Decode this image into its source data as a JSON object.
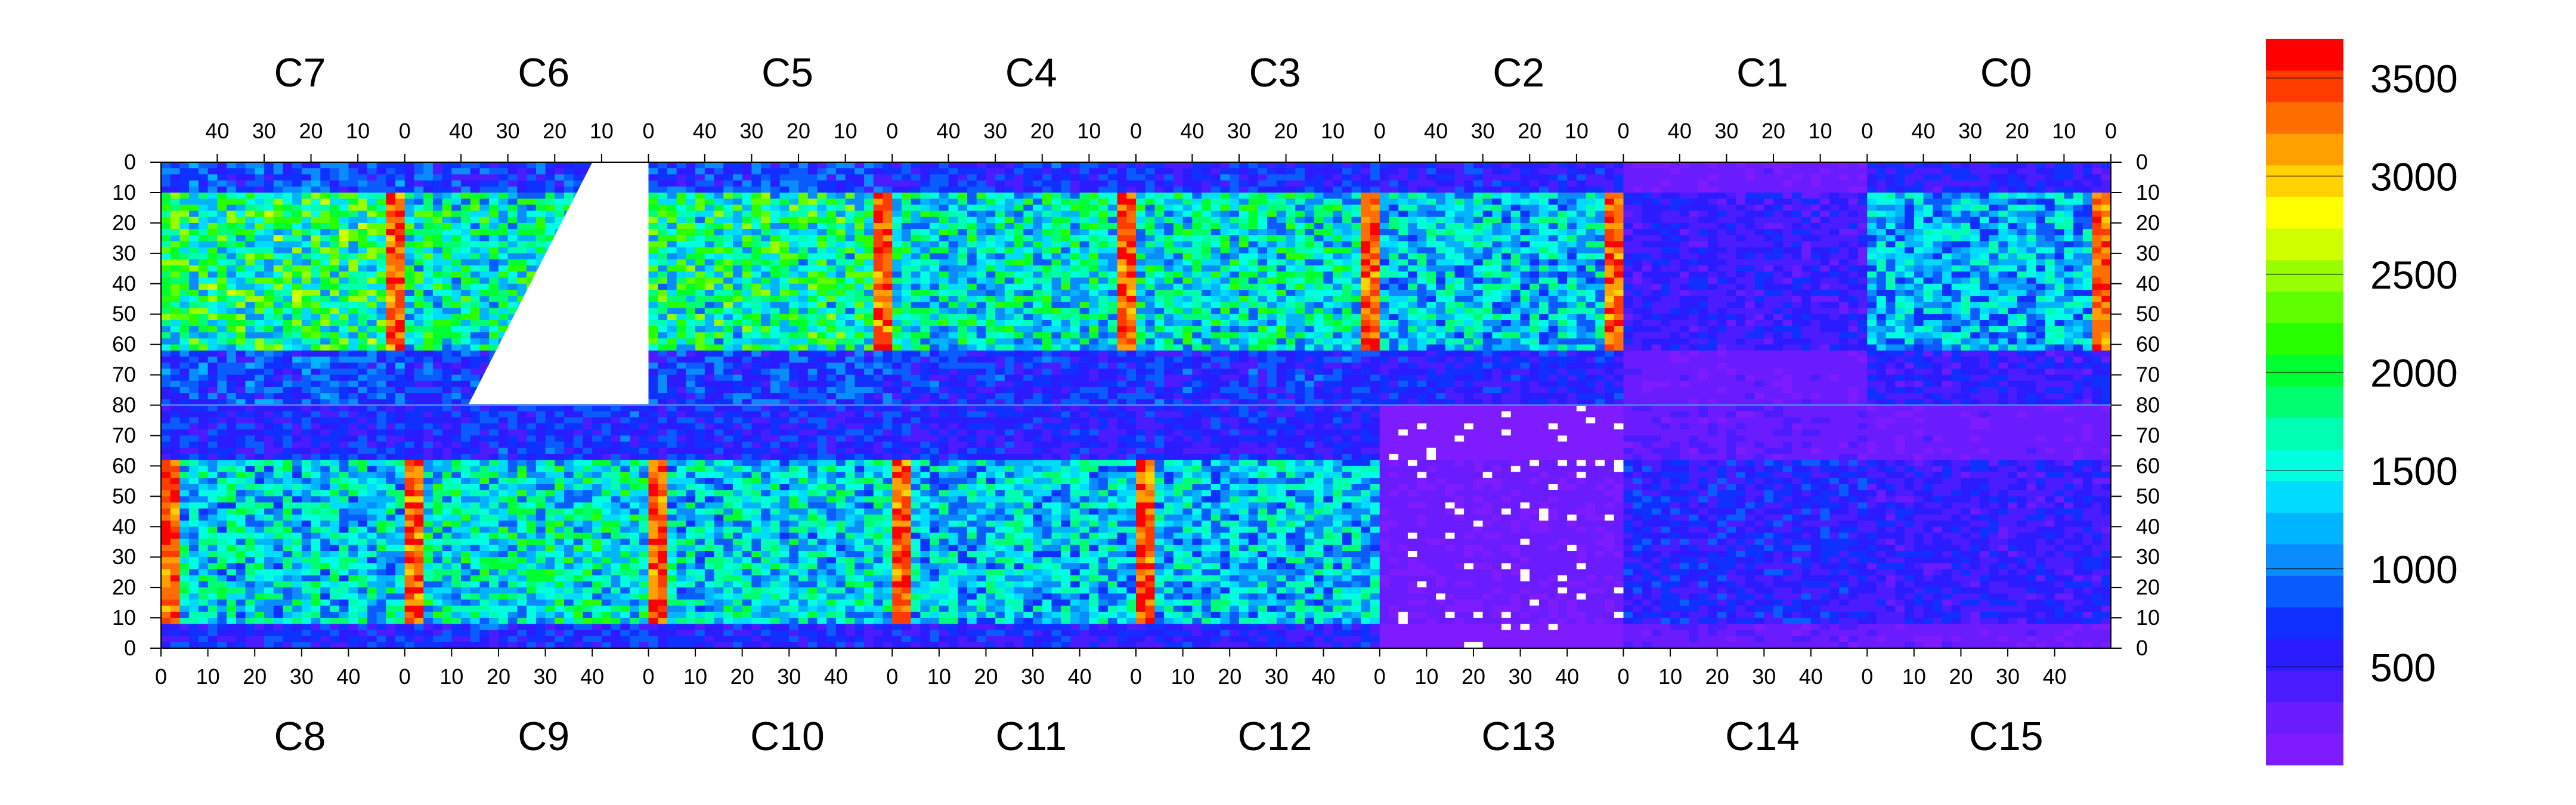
{
  "chart_data": {
    "type": "heatmap",
    "title": "",
    "xlabel": "",
    "ylabel": "",
    "chip_count": 16,
    "columns_per_chip": 52,
    "rows_per_half": 80,
    "top_chips": {
      "labels": [
        "C7",
        "C6",
        "C5",
        "C4",
        "C3",
        "C2",
        "C1",
        "C0"
      ],
      "tick_labels": [
        "40",
        "30",
        "20",
        "10",
        "0"
      ]
    },
    "bottom_chips": {
      "labels": [
        "C8",
        "C9",
        "C10",
        "C11",
        "C12",
        "C13",
        "C14",
        "C15"
      ],
      "tick_labels": [
        "0",
        "10",
        "20",
        "30",
        "40"
      ]
    },
    "y_ticks_top_half": [
      "0",
      "10",
      "20",
      "30",
      "40",
      "50",
      "60",
      "70",
      "80"
    ],
    "y_ticks_bottom_half": [
      "70",
      "60",
      "50",
      "40",
      "30",
      "20",
      "10",
      "0"
    ],
    "colorbar": {
      "min": 0,
      "max": 3700,
      "tick_labels": [
        "500",
        "1000",
        "1500",
        "2000",
        "2500",
        "3000",
        "3500"
      ],
      "tick_values": [
        500,
        1000,
        1500,
        2000,
        2500,
        3000,
        3500
      ],
      "colors": [
        "#7f1cff",
        "#6a1cff",
        "#4a1cff",
        "#2a1cff",
        "#1030ff",
        "#0a5cff",
        "#0a8cff",
        "#00b4ff",
        "#00dcff",
        "#00ffe0",
        "#00ffb0",
        "#00ff70",
        "#00ff30",
        "#28ff00",
        "#60ff00",
        "#98ff00",
        "#d0ff00",
        "#ffff00",
        "#ffd200",
        "#ffa000",
        "#ff6e00",
        "#ff3c00",
        "#ff0000"
      ]
    },
    "chip_features": [
      {
        "chip": "C7",
        "bright_band": true,
        "mean_level": 1800
      },
      {
        "chip": "C6",
        "bright_band": true,
        "mean_level": 1600,
        "empty_region": "upper-right triangle"
      },
      {
        "chip": "C5",
        "bright_band": true,
        "mean_level": 1700
      },
      {
        "chip": "C4",
        "bright_band": true,
        "mean_level": 1500
      },
      {
        "chip": "C3",
        "bright_band": true,
        "mean_level": 1500
      },
      {
        "chip": "C2",
        "bright_band": true,
        "mean_level": 1300
      },
      {
        "chip": "C1",
        "bright_band": false,
        "mean_level": 500
      },
      {
        "chip": "C0",
        "bright_band": true,
        "mean_level": 1200
      },
      {
        "chip": "C8",
        "bright_band": true,
        "mean_level": 1400
      },
      {
        "chip": "C9",
        "bright_band": true,
        "mean_level": 1500
      },
      {
        "chip": "C10",
        "bright_band": true,
        "mean_level": 1400
      },
      {
        "chip": "C11",
        "bright_band": true,
        "mean_level": 1300
      },
      {
        "chip": "C12",
        "bright_band": true,
        "mean_level": 1300
      },
      {
        "chip": "C13",
        "bright_band": false,
        "mean_level": 200,
        "empty_region": "scattered dead pixels"
      },
      {
        "chip": "C14",
        "bright_band": false,
        "mean_level": 600
      },
      {
        "chip": "C15",
        "bright_band": false,
        "mean_level": 500
      }
    ]
  }
}
